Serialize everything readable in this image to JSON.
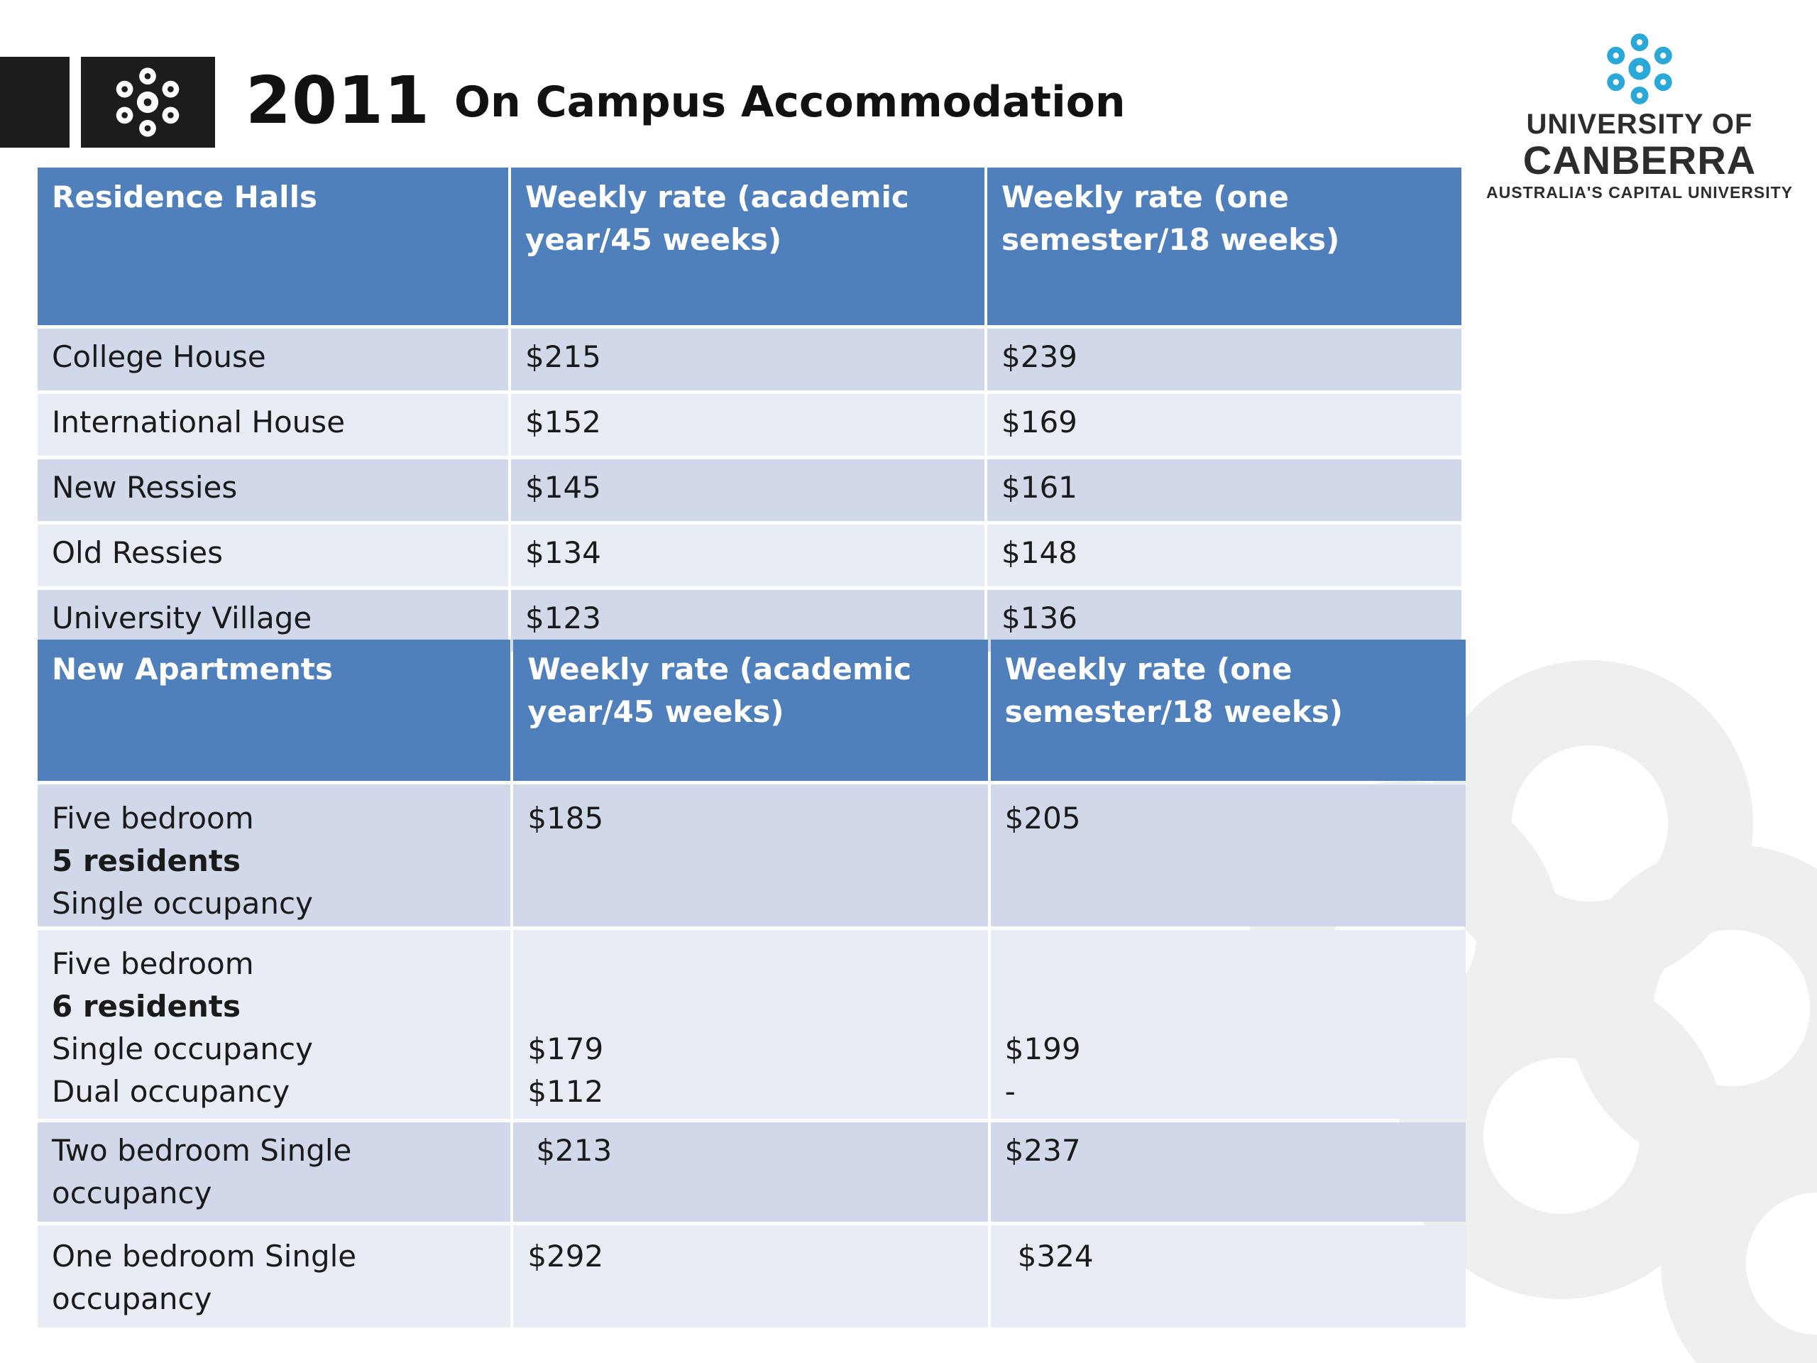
{
  "header": {
    "year": "2011",
    "title": "On Campus Accommodation"
  },
  "brand": {
    "line1": "UNIVERSITY OF",
    "line2": "CANBERRA",
    "line3": "AUSTRALIA'S CAPITAL UNIVERSITY",
    "accent_color": "#2aa8d8",
    "header_blue": "#5080bc"
  },
  "residence_halls": {
    "headers": [
      "Residence Halls",
      "Weekly rate (academic year/45 weeks)",
      "Weekly rate (one semester/18 weeks)"
    ],
    "rows": [
      {
        "name": "College House",
        "academic": "$215",
        "semester": "$239"
      },
      {
        "name": "International House",
        "academic": "$152",
        "semester": "$169"
      },
      {
        "name": "New Ressies",
        "academic": "$145",
        "semester": "$161"
      },
      {
        "name": "Old Ressies",
        "academic": "$134",
        "semester": "$148"
      },
      {
        "name": "University Village",
        "academic": "$123",
        "semester": "$136"
      }
    ]
  },
  "new_apartments": {
    "headers": [
      "New Apartments",
      "Weekly rate (academic year/45 weeks)",
      "Weekly rate (one semester/18 weeks)"
    ],
    "rows": [
      {
        "line1": "Five bedroom",
        "residents": "5 residents",
        "line3": "Single occupancy",
        "academic": "$185",
        "semester": "$205"
      },
      {
        "line1": "Five bedroom",
        "residents": "6 residents",
        "line3": "Single occupancy",
        "line4": "Dual occupancy",
        "academic_single": "$179",
        "academic_dual": "$112",
        "semester_single": "$199",
        "semester_dual": "-"
      },
      {
        "name": "Two bedroom Single occupancy",
        "academic": "$213",
        "semester": "$237"
      },
      {
        "name": "One bedroom Single occupancy",
        "academic": "$292",
        "semester": "$324"
      }
    ]
  }
}
